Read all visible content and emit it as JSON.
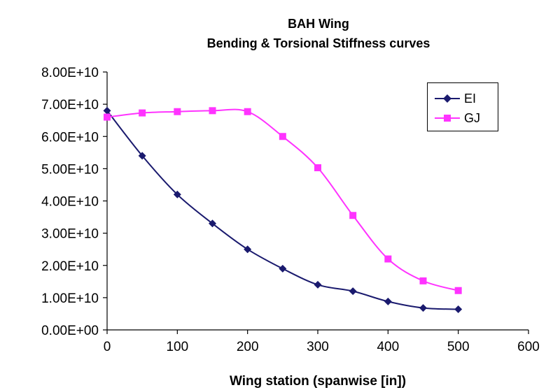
{
  "chart_data": {
    "type": "line",
    "title": "BAH Wing",
    "subtitle": "Bending & Torsional Stiffness curves",
    "xlabel": "Wing station (spanwise [in])",
    "ylabel": "",
    "xlim": [
      0,
      600
    ],
    "ylim": [
      0,
      80000000000
    ],
    "x_ticks": [
      0,
      100,
      200,
      300,
      400,
      500,
      600
    ],
    "x_tick_labels": [
      "0",
      "100",
      "200",
      "300",
      "400",
      "500",
      "600"
    ],
    "y_ticks": [
      0,
      10000000000,
      20000000000,
      30000000000,
      40000000000,
      50000000000,
      60000000000,
      70000000000,
      80000000000
    ],
    "y_tick_labels": [
      "0.00E+00",
      "1.00E+10",
      "2.00E+10",
      "3.00E+10",
      "4.00E+10",
      "5.00E+10",
      "6.00E+10",
      "7.00E+10",
      "8.00E+10"
    ],
    "grid": false,
    "legend_position": "top-right",
    "x": [
      0,
      50,
      100,
      150,
      200,
      250,
      300,
      350,
      400,
      450,
      500
    ],
    "series": [
      {
        "name": "EI",
        "color": "#1a1a6e",
        "marker": "diamond",
        "values": [
          68000000000,
          54000000000,
          42000000000,
          33000000000,
          25000000000,
          19000000000,
          14000000000,
          12000000000,
          8800000000,
          6800000000,
          6400000000
        ]
      },
      {
        "name": "GJ",
        "color": "#ff33ff",
        "marker": "square",
        "values": [
          66000000000,
          67300000000,
          67700000000,
          68000000000,
          67700000000,
          60000000000,
          50300000000,
          35500000000,
          22000000000,
          15200000000,
          12200000000
        ]
      }
    ]
  }
}
